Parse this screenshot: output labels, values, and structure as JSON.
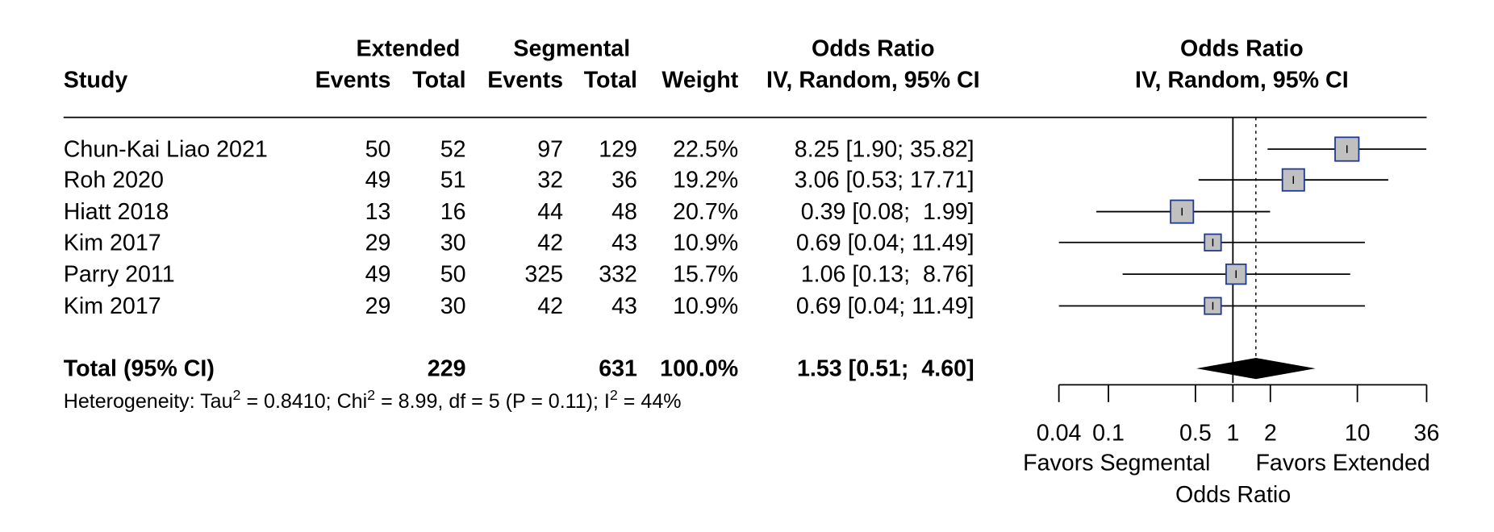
{
  "chart_data": {
    "type": "forest",
    "group_headers": [
      "Extended",
      "Segmental"
    ],
    "column_headers": [
      "Study",
      "Events",
      "Total",
      "Events",
      "Total",
      "Weight"
    ],
    "ci_header": [
      "Odds Ratio",
      "IV, Random, 95% CI"
    ],
    "plot_title": [
      "Odds Ratio",
      "IV, Random, 95% CI"
    ],
    "studies": [
      {
        "name": "Chun-Kai Liao 2021",
        "ext_events": 50,
        "ext_total": 52,
        "seg_events": 97,
        "seg_total": 129,
        "weight": 22.5,
        "weight_label": "22.5%",
        "or": 8.25,
        "lower": 1.9,
        "upper": 35.82,
        "ci_label": "8.25 [1.90; 35.82]"
      },
      {
        "name": "Roh 2020",
        "ext_events": 49,
        "ext_total": 51,
        "seg_events": 32,
        "seg_total": 36,
        "weight": 19.2,
        "weight_label": "19.2%",
        "or": 3.06,
        "lower": 0.53,
        "upper": 17.71,
        "ci_label": "3.06 [0.53; 17.71]"
      },
      {
        "name": "Hiatt 2018",
        "ext_events": 13,
        "ext_total": 16,
        "seg_events": 44,
        "seg_total": 48,
        "weight": 20.7,
        "weight_label": "20.7%",
        "or": 0.39,
        "lower": 0.08,
        "upper": 1.99,
        "ci_label": "0.39 [0.08;  1.99]"
      },
      {
        "name": "Kim 2017",
        "ext_events": 29,
        "ext_total": 30,
        "seg_events": 42,
        "seg_total": 43,
        "weight": 10.9,
        "weight_label": "10.9%",
        "or": 0.69,
        "lower": 0.04,
        "upper": 11.49,
        "ci_label": "0.69 [0.04; 11.49]"
      },
      {
        "name": "Parry 2011",
        "ext_events": 49,
        "ext_total": 50,
        "seg_events": 325,
        "seg_total": 332,
        "weight": 15.7,
        "weight_label": "15.7%",
        "or": 1.06,
        "lower": 0.13,
        "upper": 8.76,
        "ci_label": "1.06 [0.13;  8.76]"
      },
      {
        "name": "Kim 2017",
        "ext_events": 29,
        "ext_total": 30,
        "seg_events": 42,
        "seg_total": 43,
        "weight": 10.9,
        "weight_label": "10.9%",
        "or": 0.69,
        "lower": 0.04,
        "upper": 11.49,
        "ci_label": "0.69 [0.04; 11.49]"
      }
    ],
    "total": {
      "name": "Total (95% CI)",
      "ext_total": 229,
      "seg_total": 631,
      "weight": 100.0,
      "weight_label": "100.0%",
      "or": 1.53,
      "lower": 0.51,
      "upper": 4.6,
      "ci_label": "1.53 [0.51;  4.60]"
    },
    "heterogeneity": [
      "Heterogeneity: Tau",
      "2",
      " = 0.8410; Chi",
      "2",
      " = 8.99, df = 5 (P = 0.11); I",
      "2",
      " = 44%"
    ],
    "xlim": [
      0.04,
      36
    ],
    "xticks": [
      0.04,
      0.1,
      0.5,
      1,
      2,
      10,
      36
    ],
    "log_x": true,
    "favors": [
      "Favors Segmental",
      "Favors Extended"
    ],
    "xlabel": "Odds Ratio",
    "square_color": "#c0c0c0",
    "square_border": "#1f3a93"
  }
}
